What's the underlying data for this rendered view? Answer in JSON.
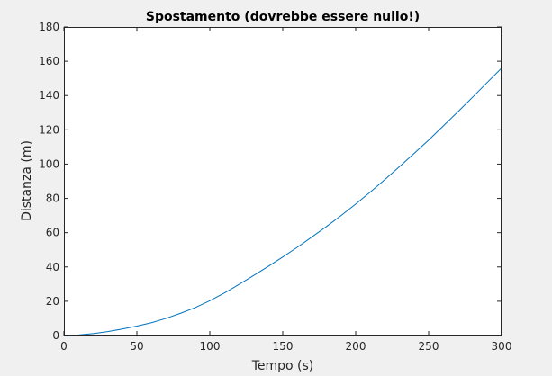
{
  "chart_data": {
    "type": "line",
    "title": "Spostamento (dovrebbe essere nullo!)",
    "xlabel": "Tempo (s)",
    "ylabel": "Distanza (m)",
    "xlim": [
      0,
      300
    ],
    "ylim": [
      0,
      180
    ],
    "xticks": [
      0,
      50,
      100,
      150,
      200,
      250,
      300
    ],
    "yticks": [
      0,
      20,
      40,
      60,
      80,
      100,
      120,
      140,
      160,
      180
    ],
    "xtick_labels": [
      "0",
      "50",
      "100",
      "150",
      "200",
      "250",
      "300"
    ],
    "ytick_labels": [
      "0",
      "20",
      "40",
      "60",
      "80",
      "100",
      "120",
      "140",
      "160",
      "180"
    ],
    "grid": false,
    "series": [
      {
        "color": "#0072bd",
        "x": [
          0,
          10,
          20,
          30,
          40,
          50,
          60,
          70,
          80,
          90,
          100,
          110,
          120,
          130,
          140,
          150,
          160,
          170,
          180,
          190,
          200,
          210,
          220,
          230,
          240,
          250,
          260,
          270,
          280,
          290,
          300
        ],
        "y": [
          0,
          0.3,
          1.1,
          2.3,
          3.8,
          5.5,
          7.5,
          10.0,
          13.0,
          16.3,
          20.3,
          24.8,
          29.8,
          35.0,
          40.3,
          45.8,
          51.5,
          57.5,
          63.6,
          70.0,
          76.7,
          83.7,
          91.0,
          98.5,
          106.2,
          114.0,
          122.2,
          130.5,
          138.9,
          147.5,
          156.0
        ]
      }
    ],
    "colors": {
      "figure_background": "#f0f0f0",
      "axes_background": "#ffffff",
      "axes_color": "#262626"
    }
  }
}
